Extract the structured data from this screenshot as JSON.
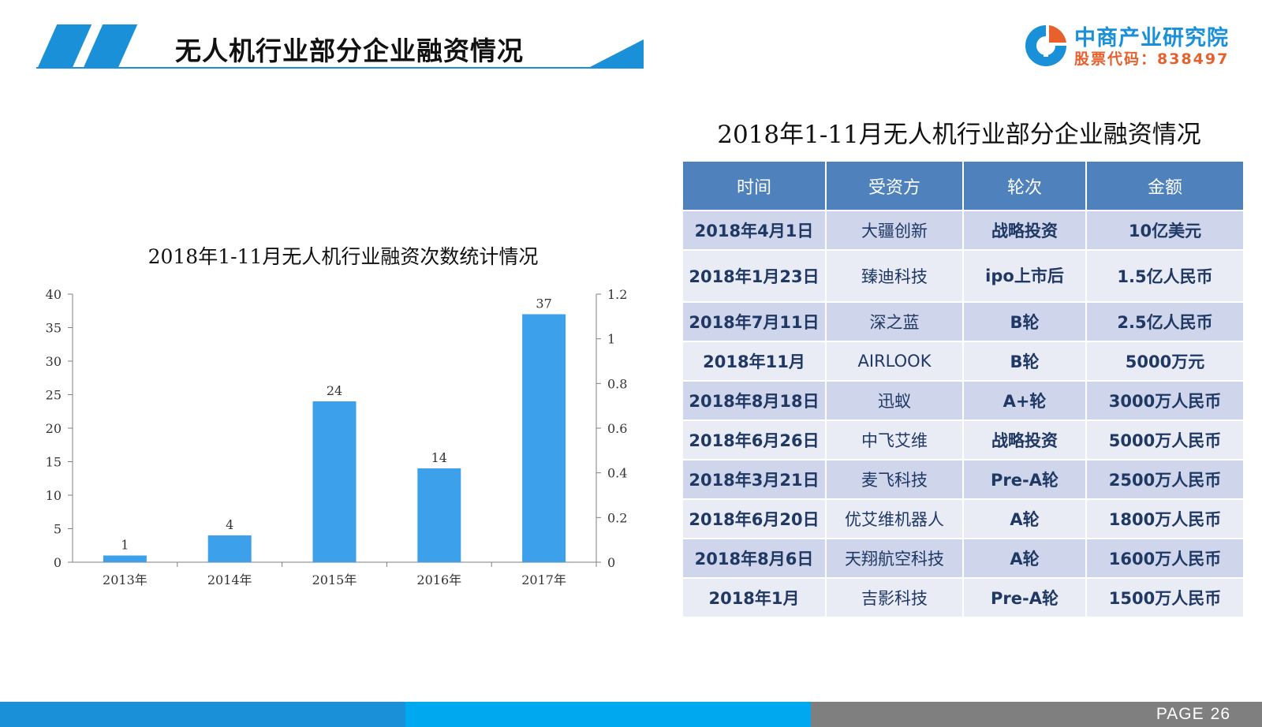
{
  "header": {
    "title": "无人机行业部分企业融资情况"
  },
  "logo": {
    "name": "中商产业研究院",
    "code": "股票代码：838497"
  },
  "footer": {
    "page_label": "PAGE",
    "page_number": "26"
  },
  "colors": {
    "brand_blue": "#1a90d9",
    "brand_orange": "#e8602c",
    "bar": "#3da0ea",
    "table_header": "#4f81bd",
    "table_row_dark": "#cfd5ea",
    "table_row_light": "#e9ebf5"
  },
  "chart_data": {
    "type": "bar",
    "title": "2018年1-11月无人机行业融资次数统计情况",
    "categories": [
      "2013年",
      "2014年",
      "2015年",
      "2016年",
      "2017年"
    ],
    "values": [
      1,
      4,
      24,
      14,
      37
    ],
    "data_labels": [
      "1",
      "4",
      "24",
      "14",
      "37"
    ],
    "ylim": [
      0,
      40
    ],
    "y_ticks": [
      "0",
      "5",
      "10",
      "15",
      "20",
      "25",
      "30",
      "35",
      "40"
    ],
    "y2lim": [
      0,
      1.2
    ],
    "y2_ticks": [
      "0",
      "0.2",
      "0.4",
      "0.6",
      "0.8",
      "1",
      "1.2"
    ],
    "xlabel": "",
    "ylabel": "",
    "grid": false,
    "legend": "none"
  },
  "table": {
    "title": "2018年1-11月无人机行业部分企业融资情况",
    "headers": [
      "时间",
      "受资方",
      "轮次",
      "金额"
    ],
    "rows": [
      [
        "2018年4月1日",
        "大疆创新",
        "战略投资",
        "10亿美元"
      ],
      [
        "2018年1月23日",
        "臻迪科技",
        "ipo上市后",
        "1.5亿人民币"
      ],
      [
        "2018年7月11日",
        "深之蓝",
        "B轮",
        "2.5亿人民币"
      ],
      [
        "2018年11月",
        "AIRLOOK",
        "B轮",
        "5000万元"
      ],
      [
        "2018年8月18日",
        "迅蚁",
        "A+轮",
        "3000万人民币"
      ],
      [
        "2018年6月26日",
        "中飞艾维",
        "战略投资",
        "5000万人民币"
      ],
      [
        "2018年3月21日",
        "麦飞科技",
        "Pre-A轮",
        "2500万人民币"
      ],
      [
        "2018年6月20日",
        "优艾维机器人",
        "A轮",
        "1800万人民币"
      ],
      [
        "2018年8月6日",
        "天翔航空科技",
        "A轮",
        "1600万人民币"
      ],
      [
        "2018年1月",
        "吉影科技",
        "Pre-A轮",
        "1500万人民币"
      ]
    ]
  }
}
